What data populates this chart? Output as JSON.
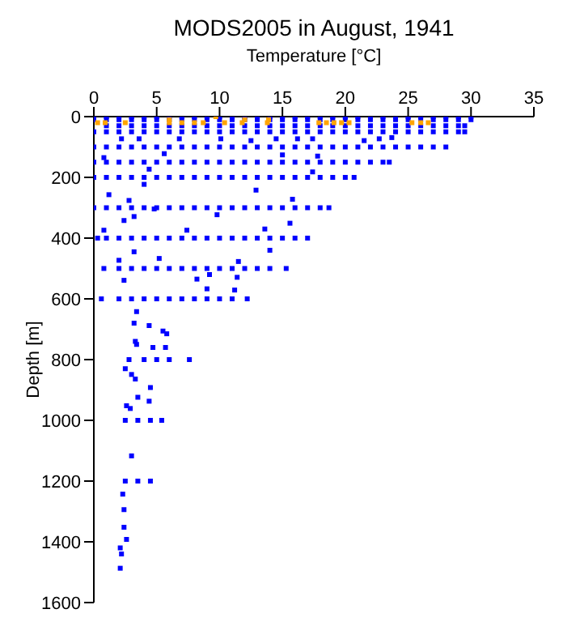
{
  "chart_data": {
    "type": "scatter",
    "title": "MODS2005 in August, 1941",
    "xlabel": "Temperature [°C]",
    "ylabel": "Depth [m]",
    "xlim": [
      0,
      35
    ],
    "xticks": [
      0,
      5,
      10,
      15,
      20,
      25,
      30,
      35
    ],
    "ylim": [
      1600,
      0
    ],
    "yticks": [
      0,
      200,
      400,
      600,
      800,
      1000,
      1200,
      1400,
      1600
    ],
    "marker": "square",
    "grid": false,
    "legend": false,
    "series": [
      {
        "color": "#0000ff",
        "x": [
          0,
          1,
          2,
          3,
          4,
          5,
          6,
          7,
          8,
          9,
          10,
          11,
          12,
          13,
          14,
          15,
          16,
          17,
          18,
          19,
          20,
          21,
          22,
          23,
          24,
          25,
          26,
          27,
          28,
          29,
          30,
          0,
          1,
          2,
          3,
          4,
          5,
          6,
          7,
          8,
          9,
          10,
          11,
          12,
          13,
          14,
          15,
          16,
          17,
          18,
          19,
          20,
          21,
          22,
          23,
          24,
          25,
          26,
          27,
          28,
          29,
          30,
          1,
          2,
          3,
          4,
          5,
          6,
          7,
          8,
          9,
          10,
          11,
          12,
          13,
          14,
          15,
          16,
          17,
          18,
          19,
          20,
          21,
          22,
          23,
          24,
          25,
          26,
          27,
          28,
          29,
          29.5,
          0,
          1,
          2,
          3,
          4,
          5,
          6,
          7,
          8,
          9,
          10,
          11,
          12,
          13,
          14,
          15,
          16,
          17,
          18,
          19,
          20,
          21,
          22,
          23,
          24,
          25,
          26,
          27,
          28,
          29,
          29.5,
          0,
          1,
          2,
          3,
          4,
          5,
          6,
          7,
          8,
          9,
          10,
          11,
          12,
          13,
          14,
          15,
          16,
          17,
          18,
          19,
          20,
          21,
          22,
          23,
          24,
          25,
          26,
          27,
          28,
          0,
          1,
          2,
          3,
          4,
          5,
          6,
          7,
          8,
          9,
          10,
          11,
          12,
          13,
          14,
          15,
          16,
          17,
          18,
          19,
          20,
          21,
          22,
          23,
          23.5,
          0,
          1,
          2,
          3,
          4,
          5,
          6,
          7,
          8,
          9,
          10,
          11,
          12,
          13,
          14,
          15,
          16,
          17,
          18,
          19,
          20,
          20.7,
          0,
          1,
          2,
          3,
          4,
          5,
          6,
          7,
          8,
          9,
          10,
          11,
          12,
          13,
          14,
          15,
          16,
          17,
          18,
          18.7,
          0.3,
          1,
          2,
          3,
          4,
          5,
          6,
          7,
          8,
          9,
          10,
          11,
          12,
          13,
          14,
          15,
          16,
          17,
          0.8,
          2,
          3,
          4,
          5,
          6,
          7,
          8,
          9,
          10,
          11,
          12,
          13,
          14,
          15.3,
          0.6,
          2,
          3,
          4,
          5,
          6,
          7,
          8,
          9,
          10,
          11,
          12.2,
          2.8,
          4,
          5,
          6,
          7.6,
          2.5,
          3.5,
          4.5,
          5.4,
          2.5,
          3.5,
          4.5,
          2.2,
          3.6,
          6.8,
          10.1,
          12.5,
          14.5,
          16.2,
          17.4,
          21.5,
          22.7,
          23.7,
          5.6,
          0.8,
          15,
          17.8,
          4.4,
          17.4,
          4,
          12.9,
          1.2,
          2.8,
          4.8,
          15.8,
          9.8,
          2.4,
          3.2,
          15.6,
          0.8,
          7.4,
          13.6,
          3.2,
          14,
          2,
          11.5,
          5.2,
          8.2,
          9.2,
          11.4,
          2.4,
          9,
          11.2,
          3.4,
          3.2,
          4.4,
          5.5,
          5.8,
          3.3,
          3.4,
          4.7,
          5.7,
          2.5,
          3,
          3.3,
          4.5,
          3.5,
          4.4,
          2.6,
          2.9,
          3,
          2.3,
          2.4,
          2.4,
          2.6,
          2.1,
          2.2,
          2.1
        ],
        "values": [
          0,
          0,
          0,
          0,
          0,
          0,
          0,
          0,
          0,
          0,
          0,
          0,
          0,
          0,
          0,
          0,
          0,
          0,
          0,
          0,
          0,
          0,
          0,
          0,
          0,
          0,
          0,
          0,
          0,
          0,
          0,
          10,
          10,
          10,
          10,
          10,
          10,
          10,
          10,
          10,
          10,
          10,
          10,
          10,
          10,
          10,
          10,
          10,
          10,
          10,
          10,
          10,
          10,
          10,
          10,
          10,
          10,
          10,
          10,
          10,
          10,
          10,
          30,
          30,
          30,
          30,
          30,
          30,
          30,
          30,
          30,
          30,
          30,
          30,
          30,
          30,
          30,
          30,
          30,
          30,
          30,
          30,
          30,
          30,
          30,
          30,
          30,
          30,
          30,
          30,
          30,
          30,
          50,
          50,
          50,
          50,
          50,
          50,
          50,
          50,
          50,
          50,
          50,
          50,
          50,
          50,
          50,
          50,
          50,
          50,
          50,
          50,
          50,
          50,
          50,
          50,
          50,
          50,
          50,
          50,
          50,
          50,
          50,
          100,
          100,
          100,
          100,
          100,
          100,
          100,
          100,
          100,
          100,
          100,
          100,
          100,
          100,
          100,
          100,
          100,
          100,
          100,
          100,
          100,
          100,
          100,
          100,
          100,
          100,
          100,
          100,
          100,
          150,
          150,
          150,
          150,
          150,
          150,
          150,
          150,
          150,
          150,
          150,
          150,
          150,
          150,
          150,
          150,
          150,
          150,
          150,
          150,
          150,
          150,
          150,
          150,
          150,
          200,
          200,
          200,
          200,
          200,
          200,
          200,
          200,
          200,
          200,
          200,
          200,
          200,
          200,
          200,
          200,
          200,
          200,
          200,
          200,
          200,
          200,
          300,
          300,
          300,
          300,
          300,
          300,
          300,
          300,
          300,
          300,
          300,
          300,
          300,
          300,
          300,
          300,
          300,
          300,
          300,
          300,
          400,
          400,
          400,
          400,
          400,
          400,
          400,
          400,
          400,
          400,
          400,
          400,
          400,
          400,
          400,
          400,
          400,
          400,
          500,
          500,
          500,
          500,
          500,
          500,
          500,
          500,
          500,
          500,
          500,
          500,
          500,
          500,
          500,
          600,
          600,
          600,
          600,
          600,
          600,
          600,
          600,
          600,
          600,
          600,
          600,
          800,
          800,
          800,
          800,
          800,
          1000,
          1000,
          1000,
          1000,
          1200,
          1200,
          1200,
          73,
          73,
          73,
          73,
          79,
          73,
          73,
          73,
          79,
          73,
          69,
          122,
          135,
          126,
          130,
          173,
          182,
          223,
          242,
          257,
          276,
          304,
          272,
          323,
          342,
          329,
          351,
          374,
          374,
          370,
          445,
          440,
          473,
          477,
          467,
          535,
          520,
          529,
          539,
          567,
          571,
          642,
          680,
          688,
          706,
          715,
          740,
          750,
          760,
          760,
          830,
          849,
          864,
          892,
          924,
          937,
          952,
          961,
          1117,
          1243,
          1294,
          1352,
          1392,
          1420,
          1440,
          1487
        ]
      },
      {
        "color": "#ffa500",
        "x": [
          0.3,
          0.9,
          2.5,
          6,
          7,
          8,
          8.7,
          10.4,
          11.8,
          13.8,
          17.9,
          18.5,
          19.1,
          19.7,
          20.3,
          25.3,
          26,
          26.6,
          9.7,
          6,
          12,
          13.9
        ],
        "values": [
          20,
          20,
          20,
          20,
          20,
          20,
          20,
          20,
          20,
          20,
          20,
          20,
          20,
          20,
          20,
          20,
          20,
          20,
          0,
          10,
          10,
          10
        ]
      }
    ]
  }
}
